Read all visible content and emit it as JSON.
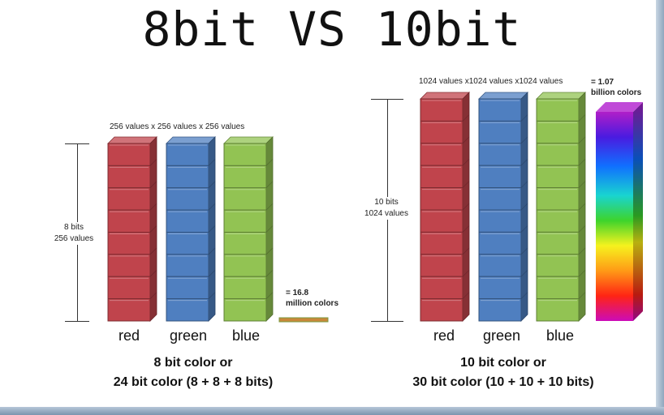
{
  "title": "8bit VS 10bit",
  "left": {
    "top_label": "256 values x 256 values x 256 values",
    "dim_line1": "8 bits",
    "dim_line2": "256 values",
    "result_line1": "= 16.8",
    "result_line2": "million colors",
    "labels": [
      "red",
      "green",
      "blue"
    ],
    "caption_line1": "8 bit color or",
    "caption_line2": "24 bit color (8 + 8 + 8 bits)"
  },
  "right": {
    "top_label": "1024 values x1024 values x1024 values",
    "dim_line1": "10 bits",
    "dim_line2": "1024 values",
    "result_line1": "= 1.07",
    "result_line2": "billion colors",
    "labels": [
      "red",
      "green",
      "blue"
    ],
    "caption_line1": "10 bit color or",
    "caption_line2": "30 bit color (10 + 10 + 10 bits)"
  },
  "colors": {
    "red": "#c0444c",
    "green_column": "#4f7fc0",
    "blue_column": "#92c353"
  }
}
